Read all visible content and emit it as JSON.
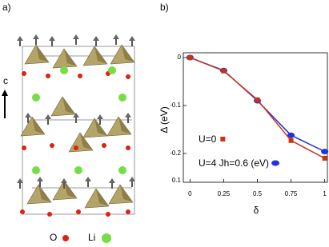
{
  "structure": {
    "panel_label": "a)",
    "axis_label": "c",
    "legend": [
      "O",
      "Li"
    ]
  },
  "chart_data": {
    "type": "line",
    "panel_label": "b)",
    "x_label": "δ",
    "y_label": "Δ (eV)",
    "x": [
      0,
      0.25,
      0.5,
      0.75,
      1
    ],
    "series": [
      {
        "name": "U=0",
        "color": "#cc3311",
        "marker": "square",
        "values": [
          0,
          -0.028,
          -0.088,
          -0.173,
          -0.21
        ]
      },
      {
        "name": "U=4  Jh=0.6 (eV)",
        "color": "#2233dd",
        "marker": "circle",
        "values": [
          0,
          -0.027,
          -0.09,
          -0.162,
          -0.196
        ]
      }
    ],
    "xlim": [
      -0.05,
      1.02
    ],
    "ylim": [
      -0.26,
      0.01
    ],
    "xticks": [
      0,
      0.25,
      0.5,
      0.75,
      1
    ],
    "yticks": [
      0,
      -0.1,
      -0.2
    ],
    "bottom_label": "0.1"
  }
}
